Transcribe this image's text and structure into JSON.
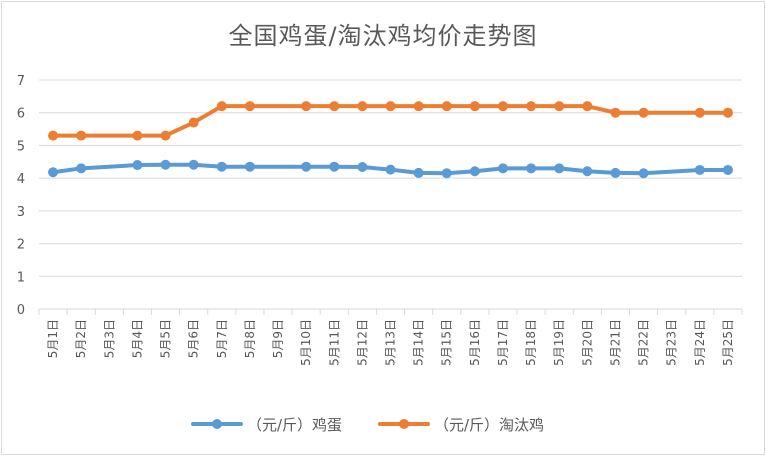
{
  "chart_data": {
    "type": "line",
    "title": "全国鸡蛋/淘汰鸡均价走势图",
    "categories": [
      "5月1日",
      "5月2日",
      "5月3日",
      "5月4日",
      "5月5日",
      "5月6日",
      "5月7日",
      "5月8日",
      "5月9日",
      "5月10日",
      "5月11日",
      "5月12日",
      "5月13日",
      "5月14日",
      "5月15日",
      "5月16日",
      "5月17日",
      "5月18日",
      "5月19日",
      "5月20日",
      "5月21日",
      "5月22日",
      "5月23日",
      "5月24日",
      "5月25日"
    ],
    "ylim": [
      0,
      7
    ],
    "yticks": [
      0,
      1,
      2,
      3,
      4,
      5,
      6,
      7
    ],
    "grid": true,
    "legend_position": "bottom",
    "series": [
      {
        "name": "（元/斤）鸡蛋",
        "color": "#5b9bd5",
        "values": [
          4.18,
          4.3,
          null,
          4.4,
          4.41,
          4.41,
          4.35,
          4.35,
          null,
          4.35,
          4.35,
          4.34,
          4.26,
          4.16,
          4.15,
          4.21,
          4.3,
          4.3,
          4.3,
          4.21,
          4.16,
          4.15,
          null,
          4.25,
          4.25
        ]
      },
      {
        "name": "（元/斤）淘汰鸡",
        "color": "#ed7d31",
        "values": [
          5.3,
          5.3,
          null,
          5.3,
          5.3,
          5.7,
          6.2,
          6.2,
          null,
          6.2,
          6.2,
          6.2,
          6.2,
          6.2,
          6.2,
          6.2,
          6.2,
          6.2,
          6.2,
          6.2,
          6.0,
          6.0,
          null,
          6.0,
          6.0
        ]
      }
    ]
  }
}
